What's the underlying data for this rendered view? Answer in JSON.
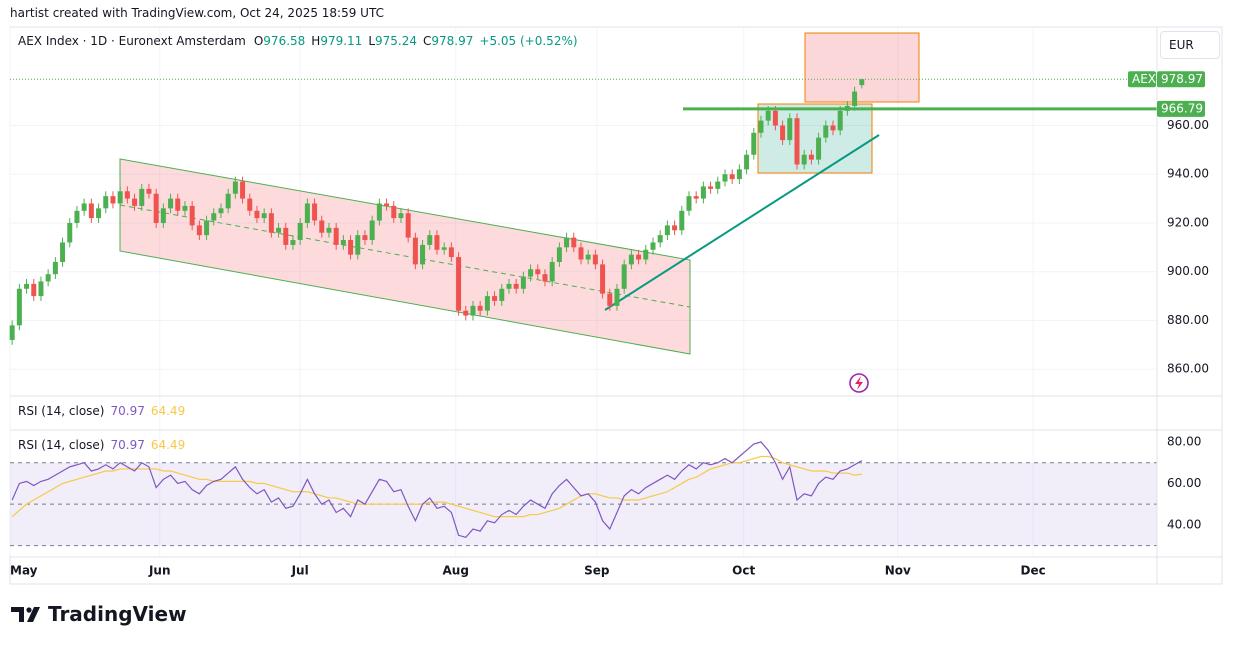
{
  "header": {
    "attribution": "hartist created with TradingView.com, Oct 24, 2025 18:59 UTC",
    "currency": "EUR",
    "logo": "TradingView"
  },
  "chart_data": {
    "type": "candlestick",
    "title": "AEX Index · 1D · Euronext Amsterdam",
    "symbol": "AEX",
    "ohlc_letters": [
      "O",
      "H",
      "L",
      "C"
    ],
    "change_label": "+5.05 (+0.52%)",
    "up_color": "#4caf50",
    "down_color": "#ef5350",
    "open": [
      872,
      878,
      893,
      895,
      890,
      896,
      899,
      904,
      912,
      920,
      925,
      928,
      922,
      926,
      931,
      928,
      933,
      930,
      927,
      934,
      932,
      920,
      926,
      930,
      925,
      927,
      919,
      915,
      921,
      924,
      926,
      932,
      937,
      930,
      925,
      922,
      924,
      916,
      918,
      911,
      913,
      920,
      928,
      921,
      916,
      918,
      911,
      913,
      907,
      915,
      913,
      921,
      928,
      927,
      922,
      924,
      914,
      903,
      911,
      915,
      909,
      910,
      906,
      884,
      882,
      886,
      884,
      890,
      888,
      893,
      895,
      893,
      898,
      901,
      899,
      896,
      904,
      910,
      914,
      910,
      905,
      907,
      903,
      891,
      886,
      893,
      903,
      907,
      905,
      909,
      912,
      915,
      919,
      917,
      925,
      931,
      930,
      935,
      934,
      937,
      940,
      938,
      942,
      948,
      957,
      962,
      966,
      960,
      954,
      963,
      944,
      948,
      946,
      955,
      960,
      958,
      966,
      968,
      976.58
    ],
    "high": [
      880,
      895,
      897,
      897,
      898,
      901,
      906,
      914,
      922,
      927,
      930,
      930,
      928,
      933,
      933,
      935,
      935,
      932,
      936,
      936,
      934,
      928,
      932,
      932,
      929,
      929,
      921,
      923,
      926,
      928,
      934,
      939,
      939,
      932,
      927,
      926,
      926,
      920,
      920,
      915,
      922,
      930,
      930,
      923,
      920,
      920,
      915,
      915,
      917,
      917,
      923,
      930,
      930,
      929,
      926,
      926,
      916,
      913,
      917,
      917,
      912,
      912,
      908,
      886,
      888,
      888,
      892,
      892,
      895,
      897,
      897,
      900,
      903,
      903,
      901,
      906,
      912,
      916,
      916,
      912,
      909,
      909,
      905,
      893,
      895,
      905,
      909,
      909,
      911,
      914,
      917,
      921,
      921,
      927,
      933,
      933,
      937,
      937,
      939,
      942,
      942,
      944,
      950,
      959,
      964,
      968,
      968,
      962,
      965,
      965,
      950,
      950,
      957,
      962,
      962,
      968,
      970,
      975.92,
      979.11
    ],
    "low": [
      870,
      876,
      891,
      888,
      888,
      894,
      897,
      902,
      910,
      918,
      923,
      920,
      920,
      924,
      926,
      926,
      928,
      925,
      925,
      930,
      918,
      918,
      924,
      923,
      923,
      917,
      913,
      913,
      919,
      922,
      924,
      930,
      928,
      923,
      920,
      920,
      914,
      914,
      909,
      909,
      911,
      918,
      919,
      914,
      914,
      909,
      909,
      905,
      905,
      911,
      911,
      919,
      925,
      920,
      920,
      912,
      901,
      901,
      909,
      907,
      907,
      904,
      882,
      880,
      880,
      882,
      882,
      886,
      886,
      891,
      891,
      891,
      896,
      897,
      894,
      894,
      902,
      908,
      908,
      903,
      903,
      901,
      889,
      884,
      884,
      891,
      901,
      903,
      903,
      907,
      910,
      913,
      915,
      915,
      923,
      928,
      928,
      932,
      932,
      935,
      936,
      936,
      940,
      946,
      955,
      960,
      958,
      952,
      952,
      942,
      942,
      944,
      944,
      953,
      956,
      956,
      964,
      966,
      975.24
    ],
    "close": [
      878,
      893,
      895,
      890,
      896,
      899,
      904,
      912,
      920,
      925,
      928,
      922,
      926,
      931,
      928,
      933,
      930,
      927,
      934,
      932,
      920,
      926,
      930,
      925,
      927,
      919,
      915,
      921,
      924,
      926,
      932,
      937,
      930,
      925,
      922,
      924,
      916,
      918,
      911,
      913,
      920,
      928,
      921,
      916,
      918,
      911,
      913,
      907,
      915,
      913,
      921,
      928,
      927,
      922,
      924,
      914,
      903,
      911,
      915,
      909,
      910,
      906,
      884,
      882,
      886,
      884,
      890,
      888,
      893,
      895,
      893,
      898,
      901,
      899,
      896,
      904,
      910,
      914,
      910,
      905,
      907,
      903,
      891,
      886,
      893,
      903,
      907,
      905,
      909,
      912,
      915,
      919,
      917,
      925,
      931,
      930,
      935,
      934,
      937,
      940,
      938,
      942,
      948,
      957,
      962,
      966,
      960,
      954,
      963,
      944,
      948,
      946,
      955,
      960,
      958,
      966,
      968,
      973.92,
      978.97
    ],
    "xlim": [
      -0.3,
      159
    ],
    "xticks": [
      {
        "value": -0.3,
        "label": "May"
      },
      {
        "value": 20.5,
        "label": "Jun"
      },
      {
        "value": 40,
        "label": "Jul"
      },
      {
        "value": 61.6,
        "label": "Aug"
      },
      {
        "value": 81.2,
        "label": "Sep"
      },
      {
        "value": 101.6,
        "label": "Oct"
      },
      {
        "value": 123,
        "label": "Nov"
      },
      {
        "value": 141.8,
        "label": "Dec"
      }
    ],
    "ylim": [
      849,
      1000
    ],
    "yticks": [
      {
        "value": 860,
        "label": "860.00"
      },
      {
        "value": 880,
        "label": "880.00"
      },
      {
        "value": 900,
        "label": "900.00"
      },
      {
        "value": 920,
        "label": "920.00"
      },
      {
        "value": 940,
        "label": "940.00"
      },
      {
        "value": 960,
        "label": "960.00"
      }
    ],
    "grid": true,
    "levels": [
      {
        "value": 966.79,
        "color": "#4caf50"
      }
    ],
    "rsi": {
      "label": "RSI (14, close)",
      "color": "#7e57c2",
      "ma_color": "#f7c948",
      "ylim": [
        25,
        85.3
      ],
      "yticks": [
        {
          "value": 40,
          "label": "40.00"
        },
        {
          "value": 60,
          "label": "60.00"
        },
        {
          "value": 80,
          "label": "80.00"
        }
      ],
      "bands": [
        30,
        50,
        70
      ],
      "values": [
        52,
        60,
        61,
        59,
        61,
        62,
        64,
        66,
        68,
        69,
        70,
        66,
        67,
        69,
        67,
        70,
        68,
        66,
        70,
        68,
        58,
        62,
        64,
        60,
        61,
        57,
        55,
        59,
        61,
        62,
        65,
        68,
        62,
        58,
        55,
        57,
        51,
        53,
        48,
        49,
        55,
        62,
        55,
        50,
        52,
        46,
        48,
        44,
        52,
        50,
        56,
        62,
        61,
        56,
        57,
        49,
        42,
        50,
        53,
        48,
        49,
        46,
        35,
        34,
        38,
        37,
        42,
        41,
        45,
        47,
        45,
        49,
        52,
        50,
        48,
        55,
        59,
        62,
        58,
        54,
        55,
        51,
        42,
        38,
        46,
        54,
        57,
        55,
        58,
        60,
        62,
        64,
        62,
        66,
        69,
        67,
        70,
        69,
        70,
        72,
        70,
        73,
        76,
        79,
        80,
        76,
        70,
        62,
        68,
        52,
        55,
        54,
        60,
        63,
        62,
        66,
        67,
        69,
        70.97
      ],
      "ma_values": [
        44,
        47,
        50,
        52,
        54,
        56,
        58,
        60,
        61,
        62,
        63,
        64,
        65,
        66,
        66,
        67,
        67,
        67,
        67,
        67,
        67,
        66,
        66,
        65,
        64,
        63,
        62,
        62,
        61,
        61,
        61,
        61,
        61,
        61,
        60,
        60,
        59,
        58,
        57,
        56,
        56,
        56,
        55,
        54,
        53,
        53,
        52,
        51,
        50,
        50,
        50,
        50,
        50,
        50,
        50,
        50,
        50,
        50,
        51,
        51,
        51,
        50,
        49,
        48,
        47,
        46,
        45,
        44,
        44,
        44,
        44,
        44,
        45,
        45,
        46,
        47,
        48,
        50,
        52,
        54,
        55,
        55,
        54,
        53,
        53,
        52,
        52,
        52,
        53,
        54,
        55,
        56,
        58,
        60,
        62,
        63,
        65,
        67,
        68,
        69,
        70,
        70,
        71,
        72,
        73,
        73,
        72,
        70,
        69,
        68,
        67,
        66,
        66,
        66,
        65,
        65,
        65,
        64,
        64.49
      ]
    }
  }
}
